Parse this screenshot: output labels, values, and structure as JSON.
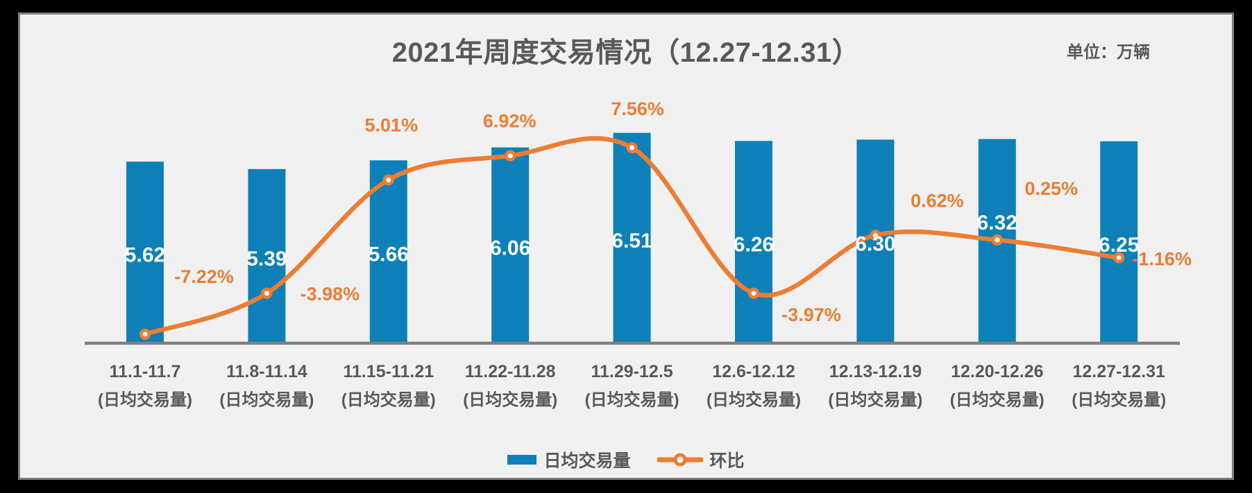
{
  "title": "2021年周度交易情况（12.27-12.31）",
  "unit_label": "单位：万辆",
  "colors": {
    "bar": "#0D80B9",
    "line": "#ED7D33",
    "text": "#595959",
    "axis": "#808080",
    "background": "#F1F1F1",
    "frame": "#000000",
    "bar_value_text": "#FFFFFF"
  },
  "legend": {
    "bar_label": "日均交易量",
    "line_label": "环比"
  },
  "chart_data": {
    "type": "combo-bar-line",
    "title": "2021年周度交易情况（12.27-12.31）",
    "unit": "单位：万辆",
    "grid": false,
    "legend_position": "bottom",
    "categories": [
      "11.1-11.7",
      "11.8-11.14",
      "11.15-11.21",
      "11.22-11.28",
      "11.29-12.5",
      "12.6-12.12",
      "12.13-12.19",
      "12.20-12.26",
      "12.27-12.31"
    ],
    "category_sublabel": "(日均交易量)",
    "series": [
      {
        "name": "日均交易量",
        "type": "bar",
        "values": [
          5.62,
          5.39,
          5.66,
          6.06,
          6.51,
          6.26,
          6.3,
          6.32,
          6.25
        ],
        "labels": [
          "5.62",
          "5.39",
          "5.66",
          "6.06",
          "6.51",
          "6.26",
          "6.30",
          "6.32",
          "6.25"
        ]
      },
      {
        "name": "环比",
        "type": "line",
        "values": [
          -7.22,
          -3.98,
          5.01,
          6.92,
          7.56,
          -3.97,
          0.62,
          0.25,
          -1.16
        ],
        "labels": [
          "-7.22%",
          "-3.98%",
          "5.01%",
          "6.92%",
          "7.56%",
          "-3.97%",
          "0.62%",
          "0.25%",
          "-1.16%"
        ]
      }
    ]
  }
}
